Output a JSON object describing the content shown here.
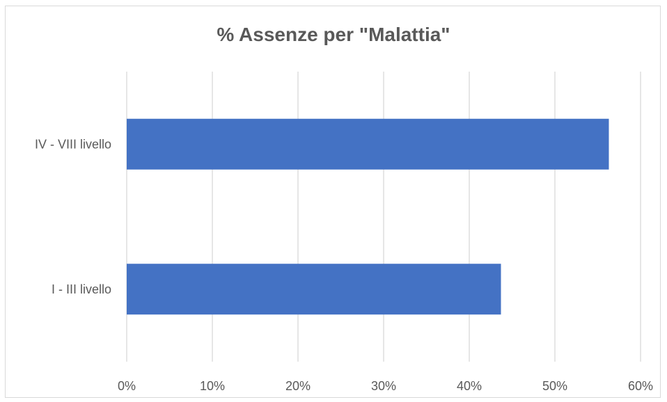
{
  "chart_data": {
    "type": "bar",
    "orientation": "horizontal",
    "title": "% Assenze per \"Malattia\"",
    "xlabel": "",
    "ylabel": "",
    "categories": [
      "IV - VIII livello",
      "I - III livello"
    ],
    "values": [
      0.563,
      0.437
    ],
    "xlim": [
      0,
      0.6
    ],
    "x_ticks": [
      0,
      0.1,
      0.2,
      0.3,
      0.4,
      0.5,
      0.6
    ],
    "x_tick_labels": [
      "0%",
      "10%",
      "20%",
      "30%",
      "40%",
      "50%",
      "60%"
    ],
    "grid": "vertical",
    "legend": "none",
    "colors": {
      "bar": "#4472c4",
      "grid": "#d9d9d9",
      "text": "#595959",
      "title": "#595959"
    }
  }
}
